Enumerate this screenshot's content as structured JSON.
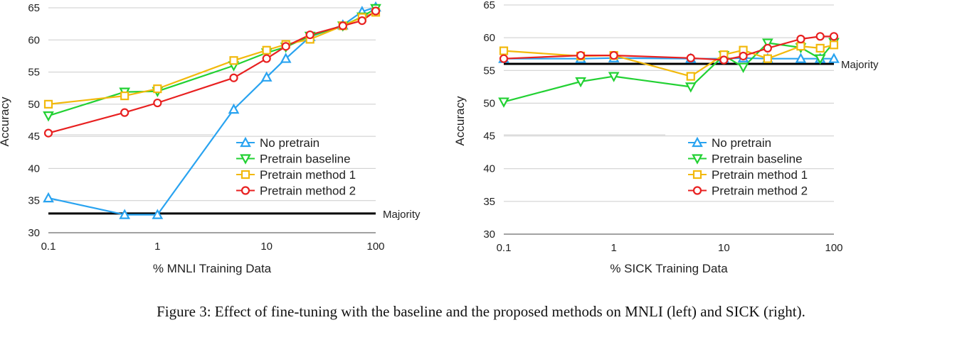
{
  "colors": {
    "no_pretrain": "#29a3f0",
    "pretrain_baseline": "#22d133",
    "pretrain_method_1": "#f2b90c",
    "pretrain_method_2": "#e82020",
    "majority": "#000000",
    "grid": "#cccccc"
  },
  "caption": "Figure 3: Effect of fine-tuning with the baseline and the proposed methods on MNLI (left) and SICK (right).",
  "chart_data": [
    {
      "type": "line",
      "xlabel": "% MNLI Training Data",
      "ylabel": "Accuracy",
      "x_scale": "log",
      "xlim": [
        0.1,
        100
      ],
      "ylim": [
        30,
        65
      ],
      "x_ticks": [
        "0.1",
        "1",
        "10",
        "100"
      ],
      "y_ticks": [
        "30",
        "35",
        "40",
        "45",
        "50",
        "55",
        "60",
        "65"
      ],
      "grid": "horizontal",
      "legend": "lower-right",
      "baseline": {
        "label": "Majority",
        "value": 33
      },
      "series": [
        {
          "name": "No pretrain",
          "marker": "triangle-up",
          "color_key": "no_pretrain",
          "x": [
            0.1,
            0.5,
            1,
            5,
            10,
            15,
            25,
            50,
            75,
            100
          ],
          "y": [
            35.4,
            32.8,
            32.8,
            49.2,
            54.2,
            57.1,
            60.5,
            62.3,
            64.4,
            65.1
          ]
        },
        {
          "name": "Pretrain baseline",
          "marker": "triangle-down",
          "color_key": "pretrain_baseline",
          "x": [
            0.1,
            0.5,
            1,
            5,
            10,
            15,
            25,
            50,
            75,
            100
          ],
          "y": [
            48.2,
            51.9,
            52.0,
            56.0,
            58.0,
            58.9,
            60.6,
            62.2,
            63.6,
            64.9
          ]
        },
        {
          "name": "Pretrain method 1",
          "marker": "square",
          "color_key": "pretrain_method_1",
          "x": [
            0.1,
            0.5,
            1,
            5,
            10,
            15,
            25,
            50,
            75,
            100
          ],
          "y": [
            50.0,
            51.3,
            52.4,
            56.8,
            58.4,
            59.3,
            60.1,
            62.2,
            63.5,
            64.3
          ]
        },
        {
          "name": "Pretrain method 2",
          "marker": "circle",
          "color_key": "pretrain_method_2",
          "x": [
            0.1,
            0.5,
            1,
            5,
            10,
            15,
            25,
            50,
            75,
            100
          ],
          "y": [
            45.5,
            48.7,
            50.2,
            54.1,
            57.1,
            59.0,
            60.8,
            62.2,
            63.0,
            64.5
          ]
        }
      ]
    },
    {
      "type": "line",
      "xlabel": "% SICK Training Data",
      "ylabel": "Accuracy",
      "x_scale": "log",
      "xlim": [
        0.1,
        100
      ],
      "ylim": [
        30,
        65
      ],
      "x_ticks": [
        "0.1",
        "1",
        "10",
        "100"
      ],
      "y_ticks": [
        "30",
        "35",
        "40",
        "45",
        "50",
        "55",
        "60",
        "65"
      ],
      "grid": "horizontal",
      "legend": "lower-right",
      "baseline": {
        "label": "Majority",
        "value": 56
      },
      "series": [
        {
          "name": "No pretrain",
          "marker": "triangle-up",
          "color_key": "no_pretrain",
          "x": [
            0.1,
            0.5,
            1,
            5,
            10,
            15,
            25,
            50,
            75,
            100
          ],
          "y": [
            56.8,
            56.8,
            56.9,
            56.8,
            56.8,
            56.9,
            56.8,
            56.8,
            56.8,
            56.8
          ]
        },
        {
          "name": "Pretrain baseline",
          "marker": "triangle-down",
          "color_key": "pretrain_baseline",
          "x": [
            0.1,
            0.5,
            1,
            5,
            10,
            15,
            25,
            50,
            75,
            100
          ],
          "y": [
            50.2,
            53.3,
            54.1,
            52.5,
            57.3,
            55.5,
            59.2,
            58.5,
            56.8,
            59.3
          ]
        },
        {
          "name": "Pretrain method 1",
          "marker": "square",
          "color_key": "pretrain_method_1",
          "x": [
            0.1,
            0.5,
            1,
            5,
            10,
            15,
            25,
            50,
            75,
            100
          ],
          "y": [
            58.0,
            57.2,
            57.3,
            54.1,
            57.4,
            58.1,
            56.8,
            58.7,
            58.4,
            58.9
          ]
        },
        {
          "name": "Pretrain method 2",
          "marker": "circle",
          "color_key": "pretrain_method_2",
          "x": [
            0.1,
            0.5,
            1,
            5,
            10,
            15,
            25,
            50,
            75,
            100
          ],
          "y": [
            56.8,
            57.3,
            57.3,
            56.9,
            56.6,
            57.2,
            58.4,
            59.8,
            60.2,
            60.2
          ]
        }
      ]
    }
  ]
}
